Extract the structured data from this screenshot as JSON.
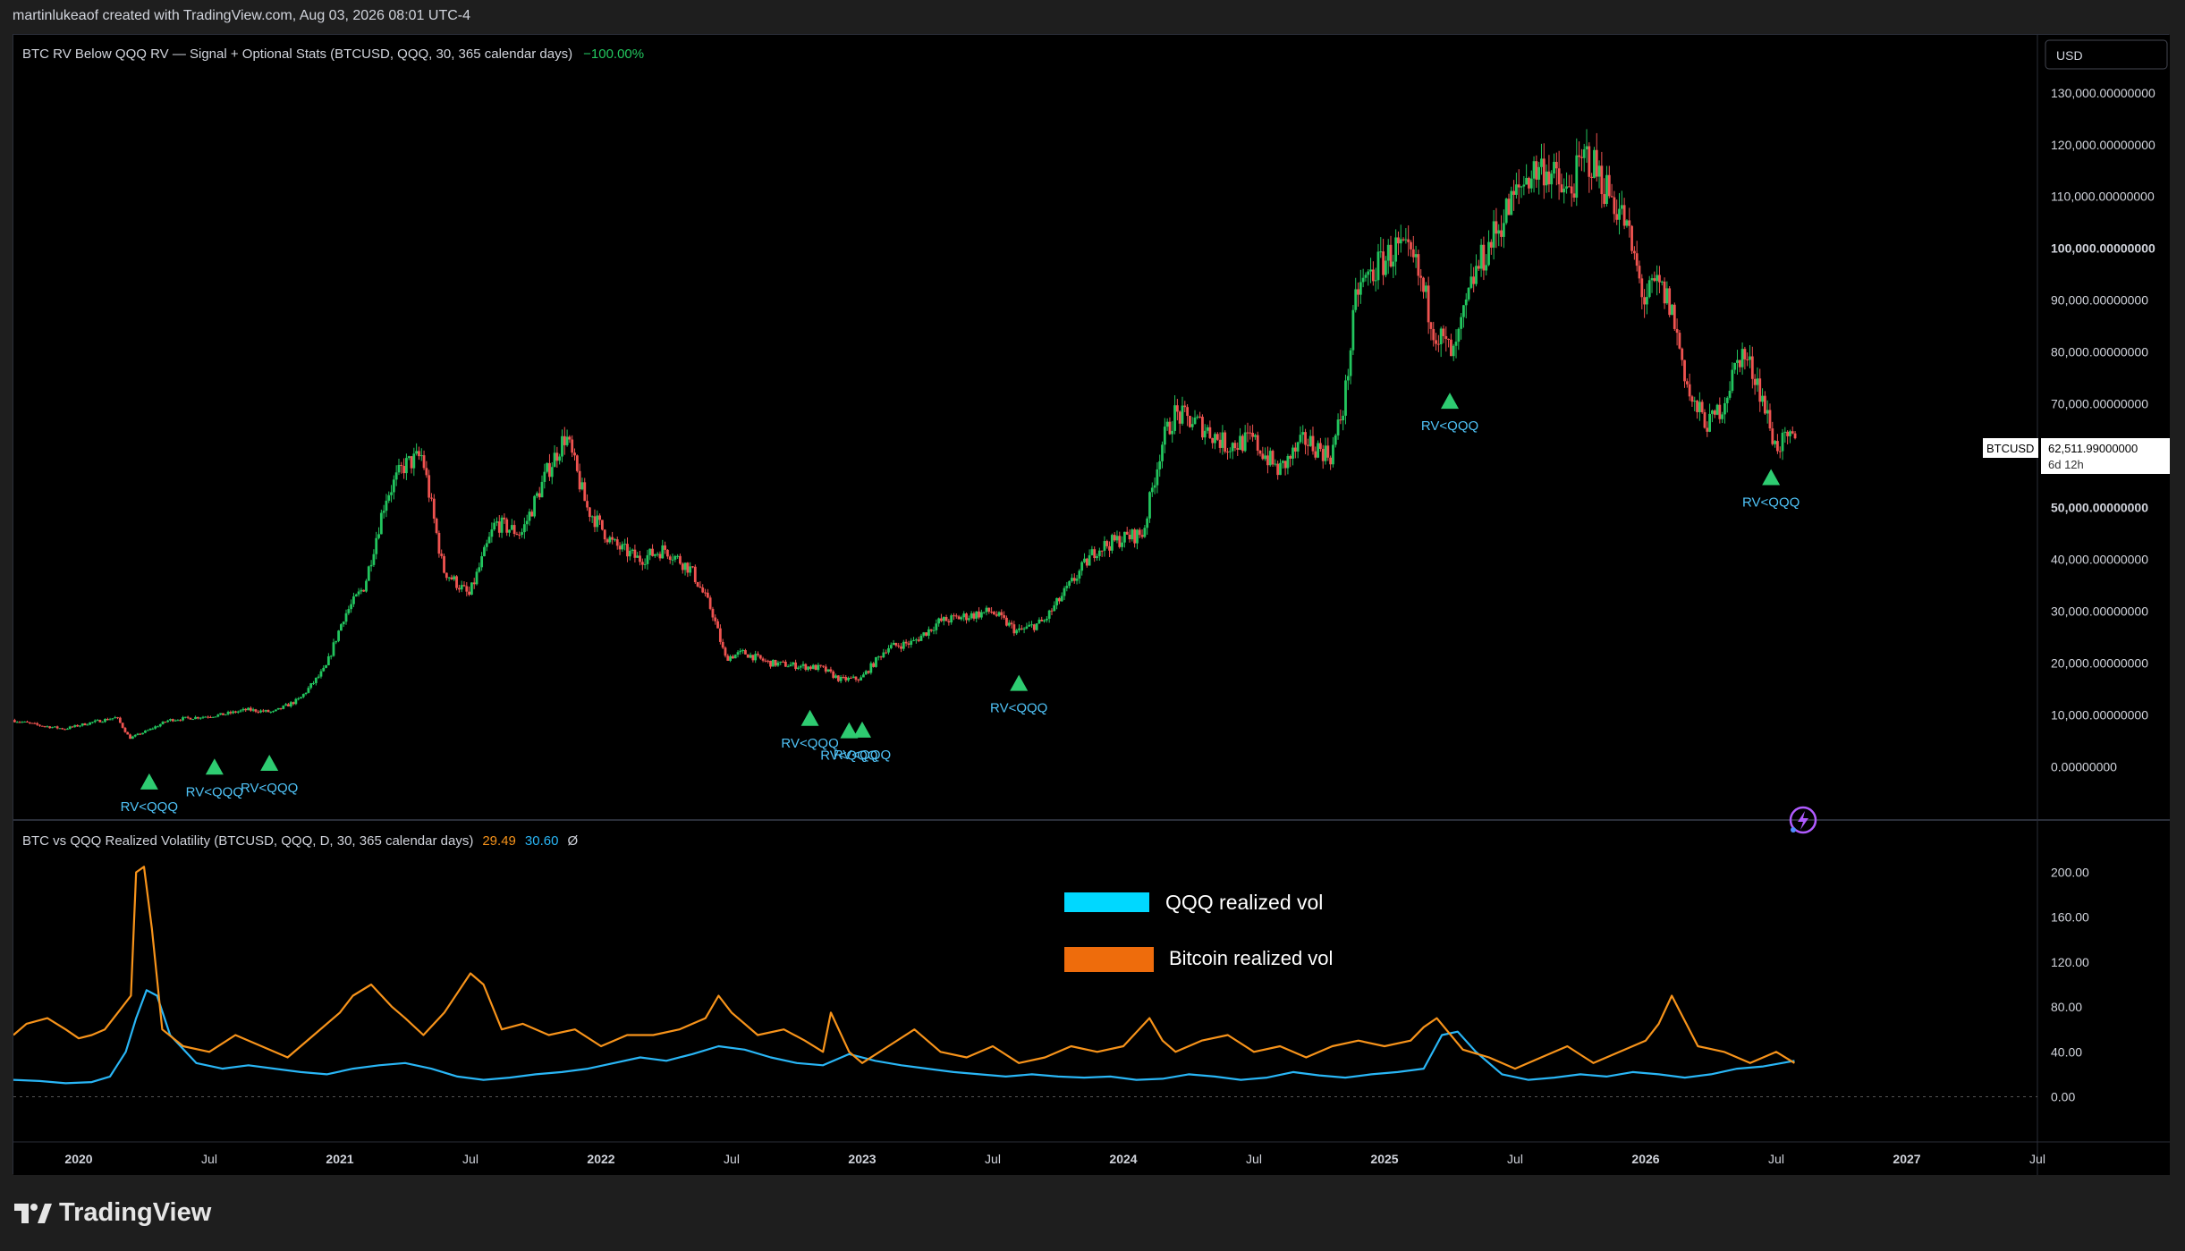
{
  "header": {
    "attribution": "martinlukeaof created with TradingView.com, Aug 03, 2026 08:01 UTC-4"
  },
  "brand": {
    "name": "TradingView"
  },
  "colors": {
    "up": "#26a69a",
    "up_bright": "#22c55e",
    "down": "#ef5350",
    "signal": "#2ecc71",
    "signal_text": "#4fc3f7",
    "btc_vol": "#f7931a",
    "qqq_vol": "#29b6f6"
  },
  "main_pane": {
    "indicator_title": "BTC RV Below QQQ RV — Signal + Optional Stats (BTCUSD, QQQ, 30, 365 calendar days)",
    "indicator_value": "−100.00%",
    "currency_button": "USD",
    "price_ticks": [
      "130,000.00000000",
      "120,000.00000000",
      "110,000.00000000",
      "100,000.00000000",
      "90,000.00000000",
      "80,000.00000000",
      "70,000.00000000",
      "60,000.00000000",
      "50,000.00000000",
      "40,000.00000000",
      "30,000.00000000",
      "20,000.00000000",
      "10,000.00000000",
      "0.00000000"
    ],
    "price_tick_values": [
      130000,
      120000,
      110000,
      100000,
      90000,
      80000,
      70000,
      60000,
      50000,
      40000,
      30000,
      20000,
      10000,
      0
    ],
    "last_price": {
      "symbol": "BTCUSD",
      "value": "62,511.99000000",
      "countdown": "6d 12h"
    },
    "signal_label": "RV<QQQ"
  },
  "vol_pane": {
    "indicator_title": "BTC vs QQQ Realized Volatility (BTCUSD, QQQ, D, 30, 365 calendar days)",
    "btc_value": "29.49",
    "qqq_value": "30.60",
    "extra_symbol": "Ø",
    "ticks": [
      "200.00",
      "160.00",
      "120.00",
      "80.00",
      "40.00",
      "0.00"
    ],
    "tick_values": [
      200,
      160,
      120,
      80,
      40,
      0
    ],
    "legend": [
      {
        "name": "QQQ realized vol",
        "color": "#00d8ff"
      },
      {
        "name": "Bitcoin realized vol",
        "color": "#ee6c0c"
      }
    ]
  },
  "time_axis": {
    "labels": [
      "2020",
      "Jul",
      "2021",
      "Jul",
      "2022",
      "Jul",
      "2023",
      "Jul",
      "2024",
      "Jul",
      "2025",
      "Jul",
      "2026",
      "Jul",
      "2027",
      "Jul"
    ],
    "label_dates": [
      2020.0,
      2020.5,
      2021.0,
      2021.5,
      2022.0,
      2022.5,
      2023.0,
      2023.5,
      2024.0,
      2024.5,
      2025.0,
      2025.5,
      2026.0,
      2026.5,
      2027.0,
      2027.5
    ]
  },
  "chart_data": [
    {
      "type": "line",
      "title": "BTC RV Below QQQ RV — Signal + Optional Stats (BTCUSD, QQQ, 30, 365 calendar days)",
      "series_name": "BTCUSD",
      "xlim": [
        2019.75,
        2027.5
      ],
      "ylim": [
        -2000,
        136000
      ],
      "x": [
        2019.75,
        2019.85,
        2019.95,
        2020.05,
        2020.15,
        2020.2,
        2020.27,
        2020.35,
        2020.45,
        2020.55,
        2020.65,
        2020.75,
        2020.85,
        2020.95,
        2021.02,
        2021.1,
        2021.18,
        2021.25,
        2021.32,
        2021.4,
        2021.5,
        2021.55,
        2021.6,
        2021.7,
        2021.8,
        2021.87,
        2021.95,
        2022.05,
        2022.15,
        2022.25,
        2022.35,
        2022.43,
        2022.48,
        2022.55,
        2022.65,
        2022.75,
        2022.85,
        2022.92,
        2023.0,
        2023.1,
        2023.2,
        2023.3,
        2023.4,
        2023.5,
        2023.6,
        2023.7,
        2023.8,
        2023.9,
        2024.0,
        2024.08,
        2024.15,
        2024.2,
        2024.3,
        2024.4,
        2024.5,
        2024.6,
        2024.7,
        2024.8,
        2024.85,
        2024.9,
        2024.97,
        2025.05,
        2025.12,
        2025.2,
        2025.27,
        2025.35,
        2025.45,
        2025.55,
        2025.62,
        2025.7,
        2025.78,
        2025.85,
        2025.92,
        2026.0,
        2026.05,
        2026.1,
        2026.18,
        2026.25,
        2026.3,
        2026.37,
        2026.43,
        2026.5,
        2026.57
      ],
      "y": [
        9000,
        8000,
        7300,
        8500,
        9500,
        5500,
        7000,
        9000,
        9500,
        10000,
        11000,
        10500,
        13000,
        19000,
        29000,
        35000,
        52000,
        58000,
        60000,
        38000,
        33000,
        40000,
        47000,
        45000,
        57000,
        64000,
        50000,
        43000,
        40000,
        42000,
        38000,
        30000,
        21000,
        22000,
        20000,
        19500,
        19000,
        16800,
        17000,
        23000,
        24000,
        28000,
        29000,
        30000,
        26000,
        28000,
        35000,
        42000,
        44000,
        45000,
        62000,
        68000,
        66000,
        62000,
        63000,
        57000,
        63000,
        60000,
        70000,
        92000,
        96000,
        100000,
        97000,
        84000,
        79000,
        95000,
        105000,
        114000,
        116000,
        110000,
        118000,
        112000,
        106000,
        90000,
        93000,
        89000,
        70000,
        66000,
        70000,
        80000,
        75000,
        62000,
        63000
      ],
      "signals": {
        "label": "RV<QQQ",
        "x": [
          2020.27,
          2020.52,
          2020.73,
          2022.8,
          2022.95,
          2023.0,
          2023.6,
          2025.25,
          2026.48
        ]
      }
    },
    {
      "type": "line",
      "title": "BTC vs QQQ Realized Volatility (BTCUSD, QQQ, D, 30, 365 calendar days)",
      "xlim": [
        2019.75,
        2027.5
      ],
      "ylim": [
        -10,
        210
      ],
      "series": [
        {
          "name": "Bitcoin realized vol",
          "color": "#f7931a",
          "x": [
            2019.75,
            2019.8,
            2019.88,
            2019.95,
            2020.0,
            2020.05,
            2020.1,
            2020.15,
            2020.2,
            2020.22,
            2020.25,
            2020.28,
            2020.32,
            2020.4,
            2020.5,
            2020.6,
            2020.7,
            2020.8,
            2020.9,
            2021.0,
            2021.05,
            2021.12,
            2021.2,
            2021.25,
            2021.32,
            2021.4,
            2021.5,
            2021.55,
            2021.62,
            2021.7,
            2021.8,
            2021.9,
            2022.0,
            2022.1,
            2022.2,
            2022.3,
            2022.4,
            2022.45,
            2022.5,
            2022.6,
            2022.7,
            2022.78,
            2022.85,
            2022.88,
            2022.95,
            2023.0,
            2023.1,
            2023.2,
            2023.3,
            2023.4,
            2023.5,
            2023.6,
            2023.7,
            2023.8,
            2023.9,
            2024.0,
            2024.1,
            2024.15,
            2024.2,
            2024.3,
            2024.4,
            2024.5,
            2024.6,
            2024.7,
            2024.8,
            2024.9,
            2025.0,
            2025.1,
            2025.15,
            2025.2,
            2025.3,
            2025.4,
            2025.5,
            2025.6,
            2025.7,
            2025.8,
            2025.9,
            2026.0,
            2026.05,
            2026.1,
            2026.2,
            2026.3,
            2026.4,
            2026.5,
            2026.57
          ],
          "y": [
            55,
            65,
            70,
            60,
            52,
            55,
            60,
            75,
            90,
            200,
            205,
            150,
            60,
            45,
            40,
            55,
            45,
            35,
            55,
            75,
            90,
            100,
            80,
            70,
            55,
            75,
            110,
            100,
            60,
            65,
            55,
            60,
            45,
            55,
            55,
            60,
            70,
            90,
            75,
            55,
            60,
            50,
            40,
            75,
            40,
            30,
            45,
            60,
            40,
            35,
            45,
            30,
            35,
            45,
            40,
            45,
            70,
            50,
            40,
            50,
            55,
            40,
            45,
            35,
            45,
            50,
            45,
            50,
            62,
            70,
            42,
            35,
            25,
            35,
            45,
            30,
            40,
            50,
            65,
            90,
            45,
            40,
            30,
            40,
            30
          ]
        },
        {
          "name": "QQQ realized vol",
          "color": "#29b6f6",
          "x": [
            2019.75,
            2019.85,
            2019.95,
            2020.05,
            2020.12,
            2020.18,
            2020.22,
            2020.26,
            2020.3,
            2020.35,
            2020.45,
            2020.55,
            2020.65,
            2020.75,
            2020.85,
            2020.95,
            2021.05,
            2021.15,
            2021.25,
            2021.35,
            2021.45,
            2021.55,
            2021.65,
            2021.75,
            2021.85,
            2021.95,
            2022.05,
            2022.15,
            2022.25,
            2022.35,
            2022.45,
            2022.55,
            2022.65,
            2022.75,
            2022.85,
            2022.95,
            2023.05,
            2023.15,
            2023.25,
            2023.35,
            2023.45,
            2023.55,
            2023.65,
            2023.75,
            2023.85,
            2023.95,
            2024.05,
            2024.15,
            2024.25,
            2024.35,
            2024.45,
            2024.55,
            2024.65,
            2024.75,
            2024.85,
            2024.95,
            2025.05,
            2025.15,
            2025.22,
            2025.28,
            2025.35,
            2025.45,
            2025.55,
            2025.65,
            2025.75,
            2025.85,
            2025.95,
            2026.05,
            2026.15,
            2026.25,
            2026.35,
            2026.45,
            2026.57
          ],
          "y": [
            15,
            14,
            12,
            13,
            18,
            40,
            70,
            95,
            90,
            55,
            30,
            25,
            28,
            25,
            22,
            20,
            25,
            28,
            30,
            25,
            18,
            15,
            17,
            20,
            22,
            25,
            30,
            35,
            32,
            38,
            45,
            42,
            35,
            30,
            28,
            38,
            32,
            28,
            25,
            22,
            20,
            18,
            20,
            18,
            17,
            18,
            15,
            16,
            20,
            18,
            15,
            17,
            22,
            19,
            17,
            20,
            22,
            25,
            55,
            58,
            40,
            20,
            15,
            17,
            20,
            18,
            22,
            20,
            17,
            20,
            25,
            27,
            32
          ]
        }
      ]
    }
  ]
}
